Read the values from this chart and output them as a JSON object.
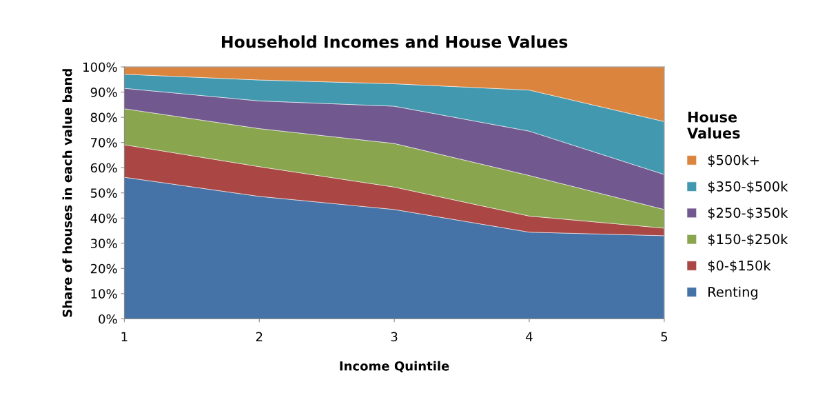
{
  "chart_data": {
    "type": "area",
    "stacked": true,
    "title": "Household Incomes and House Values",
    "xlabel": "Income Quintile",
    "ylabel": "Share of houses in each value band",
    "legend_title": "House\nValues",
    "legend": "right",
    "grid": false,
    "x": [
      1,
      2,
      3,
      4,
      5
    ],
    "xlim": [
      1,
      5
    ],
    "xticks": [
      1,
      2,
      3,
      4,
      5
    ],
    "ylim": [
      0,
      100
    ],
    "yticks": [
      {
        "value": 0,
        "label": "0%"
      },
      {
        "value": 10,
        "label": "10%"
      },
      {
        "value": 20,
        "label": "20%"
      },
      {
        "value": 30,
        "label": "30%"
      },
      {
        "value": 40,
        "label": "40%"
      },
      {
        "value": 50,
        "label": "50%"
      },
      {
        "value": 60,
        "label": "60%"
      },
      {
        "value": 70,
        "label": "70%"
      },
      {
        "value": 80,
        "label": "80%"
      },
      {
        "value": 90,
        "label": "90%"
      },
      {
        "value": 100,
        "label": "100%"
      }
    ],
    "series": [
      {
        "name": "Renting",
        "color": "#4572a7",
        "values": [
          56.2,
          48.6,
          43.4,
          34.4,
          33.0
        ]
      },
      {
        "name": "$0-$150k",
        "color": "#aa4643",
        "values": [
          12.9,
          11.8,
          8.9,
          6.4,
          3.0
        ]
      },
      {
        "name": "$150-$250k",
        "color": "#89a54e",
        "values": [
          14.3,
          15.1,
          17.3,
          16.1,
          7.4
        ]
      },
      {
        "name": "$250-$350k",
        "color": "#71588f",
        "values": [
          8.1,
          11.0,
          14.8,
          17.6,
          13.9
        ]
      },
      {
        "name": "$350-$500k",
        "color": "#4198af",
        "values": [
          5.6,
          8.3,
          8.9,
          16.3,
          21.0
        ]
      },
      {
        "name": "$500k+",
        "color": "#db843d",
        "values": [
          2.9,
          5.2,
          6.7,
          9.2,
          21.7
        ]
      }
    ]
  }
}
